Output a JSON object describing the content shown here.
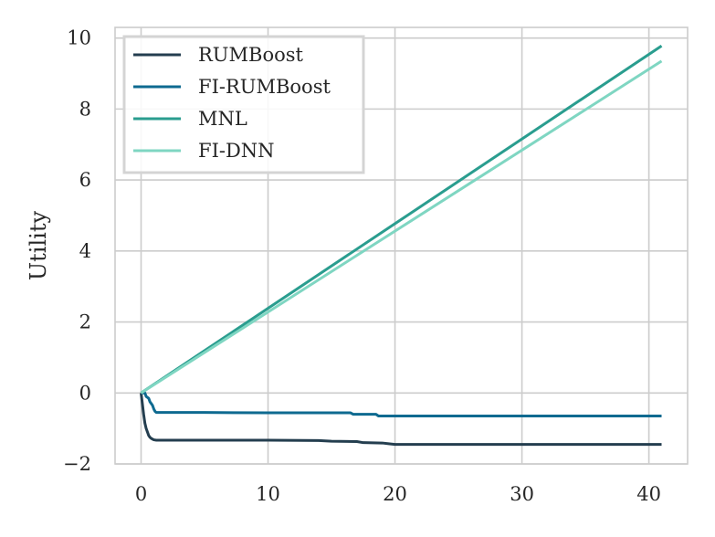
{
  "chart_data": {
    "type": "line",
    "title": "",
    "xlabel": "",
    "ylabel": "Utility",
    "xlim": [
      -2.05,
      43.05
    ],
    "ylim": [
      -2.0,
      10.3
    ],
    "xticks": [
      0,
      10,
      20,
      30,
      40
    ],
    "yticks": [
      -2,
      0,
      2,
      4,
      6,
      8,
      10
    ],
    "xtick_labels": [
      "0",
      "10",
      "20",
      "30",
      "40"
    ],
    "ytick_labels": [
      "−2",
      "0",
      "2",
      "4",
      "6",
      "8",
      "10"
    ],
    "grid": true,
    "legend_position": "top-left",
    "series": [
      {
        "name": "RUMBoost",
        "color": "#243e4f",
        "x": [
          0,
          0.1,
          0.2,
          0.3,
          0.4,
          0.5,
          0.6,
          0.7,
          0.8,
          0.9,
          1.0,
          1.2,
          1.5,
          5,
          10,
          14,
          15,
          17,
          17.5,
          19,
          19.5,
          20,
          25,
          30,
          35,
          41
        ],
        "y": [
          0,
          -0.3,
          -0.6,
          -0.85,
          -1.0,
          -1.1,
          -1.2,
          -1.25,
          -1.28,
          -1.3,
          -1.32,
          -1.33,
          -1.33,
          -1.33,
          -1.33,
          -1.34,
          -1.36,
          -1.37,
          -1.4,
          -1.41,
          -1.43,
          -1.45,
          -1.45,
          -1.45,
          -1.45,
          -1.45
        ]
      },
      {
        "name": "FI-RUMBoost",
        "color": "#0e6a90",
        "x": [
          0,
          0.3,
          0.4,
          0.6,
          0.7,
          0.8,
          0.9,
          1.0,
          1.1,
          1.2,
          5,
          10,
          16.5,
          16.7,
          18.5,
          18.7,
          25,
          30,
          35,
          41
        ],
        "y": [
          0,
          0,
          -0.1,
          -0.15,
          -0.25,
          -0.3,
          -0.35,
          -0.45,
          -0.52,
          -0.55,
          -0.55,
          -0.56,
          -0.56,
          -0.6,
          -0.6,
          -0.65,
          -0.65,
          -0.65,
          -0.65,
          -0.65
        ]
      },
      {
        "name": "MNL",
        "color": "#2a9d8f",
        "x": [
          0,
          41
        ],
        "y": [
          0,
          9.78
        ]
      },
      {
        "name": "FI-DNN",
        "color": "#7fd6c2",
        "x": [
          0,
          41
        ],
        "y": [
          0,
          9.35
        ]
      }
    ]
  }
}
